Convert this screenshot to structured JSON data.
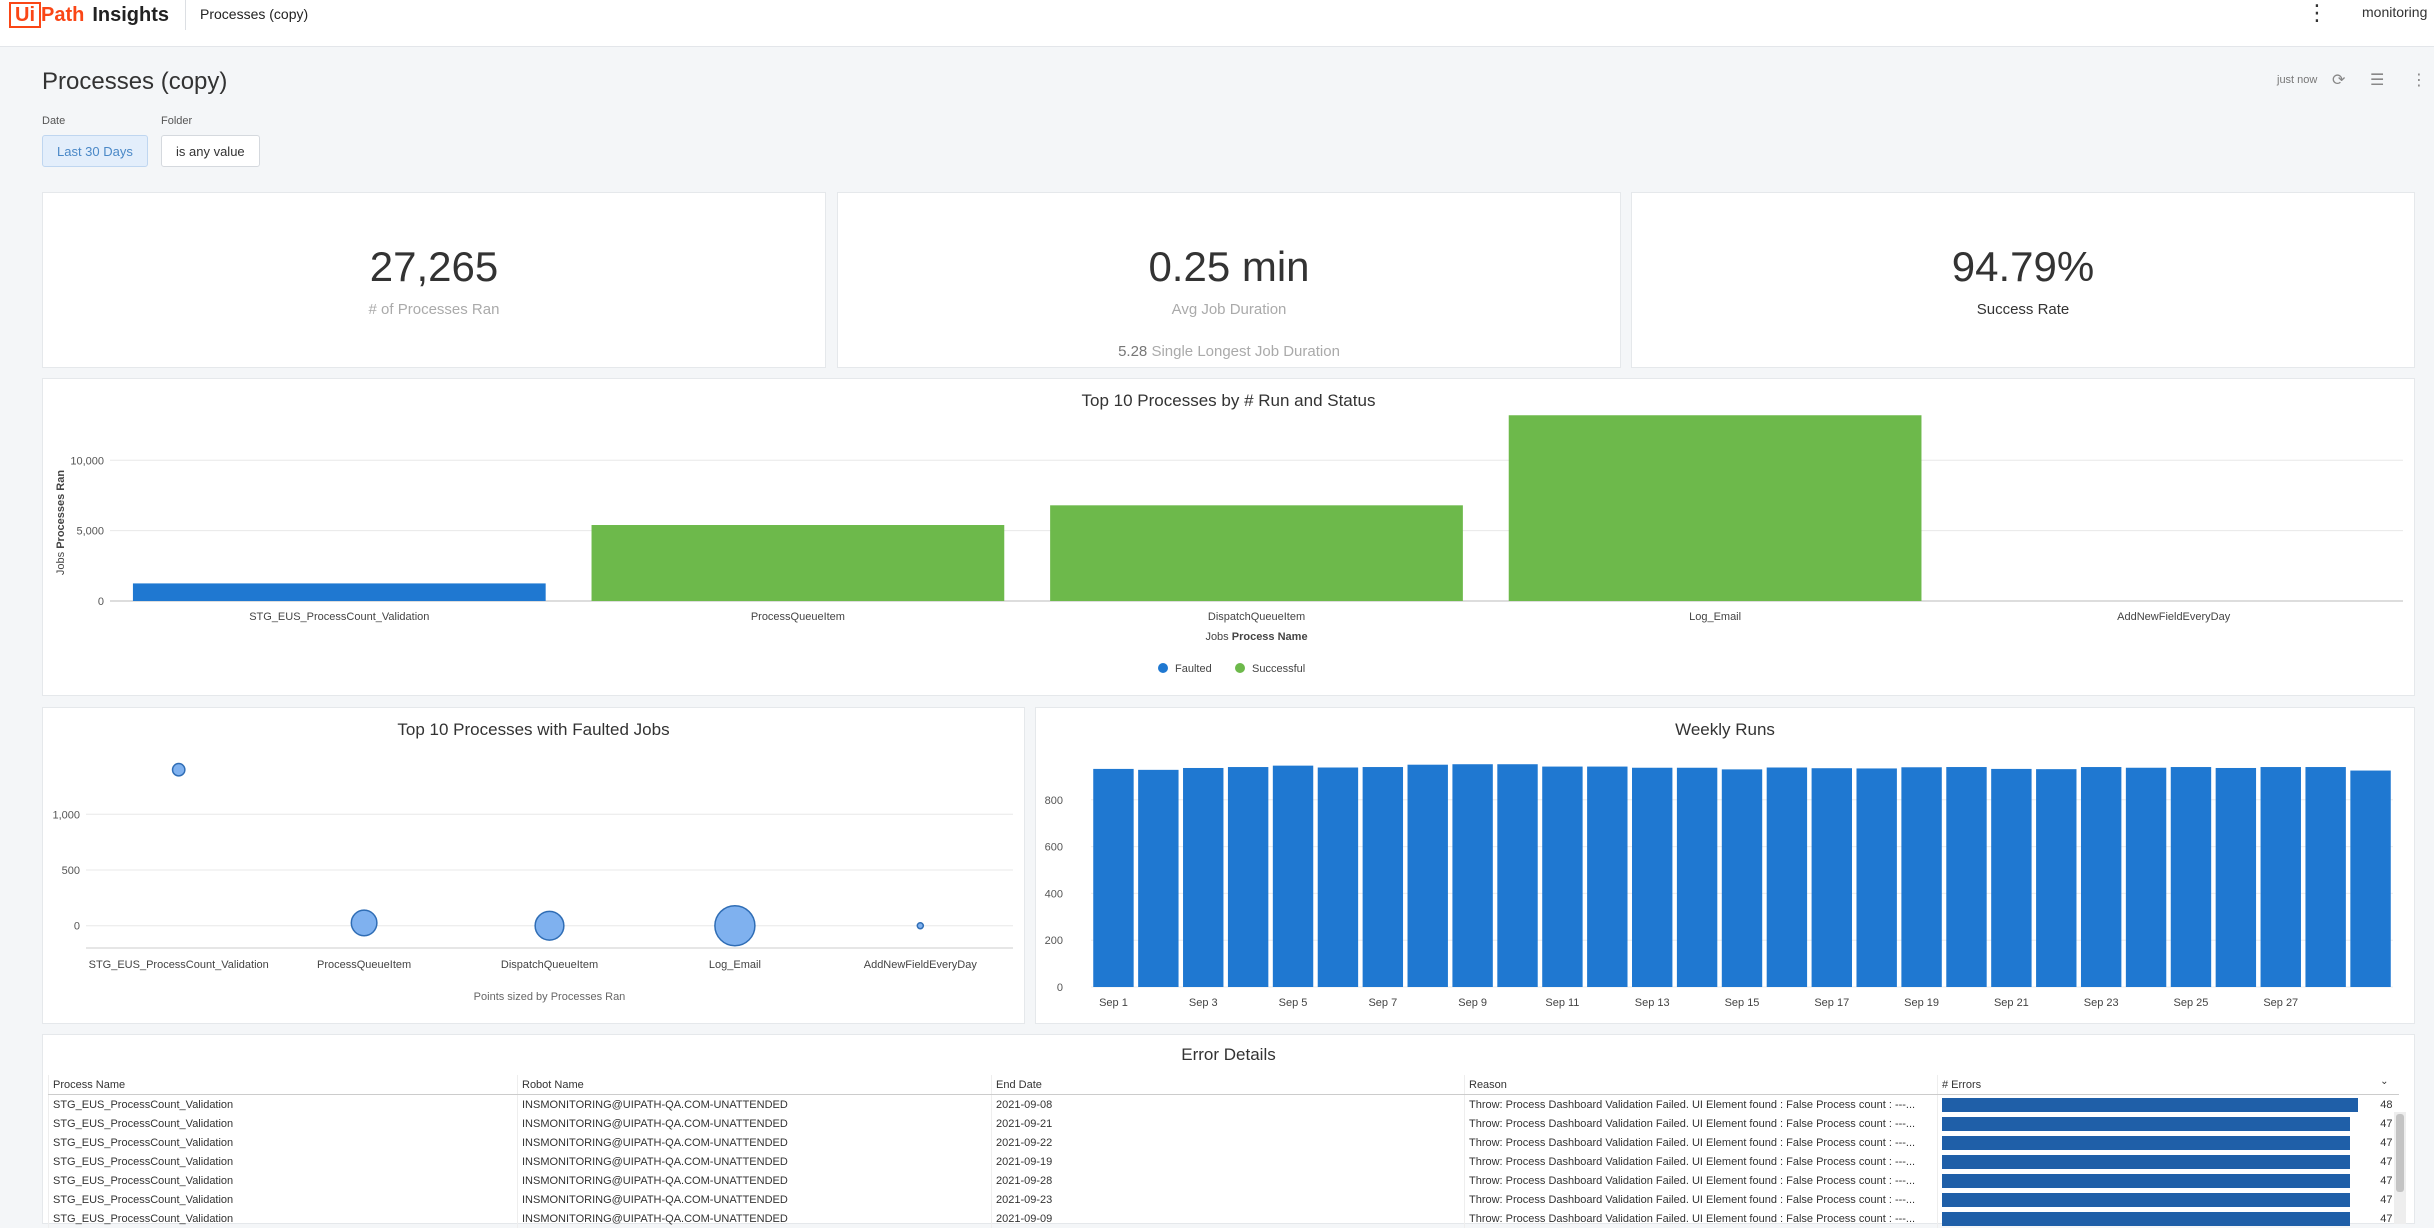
{
  "app": {
    "logo_mark": "Ui",
    "logo_path": "Path",
    "product": "Insights",
    "breadcrumb": "Processes (copy)",
    "user": "monitoring",
    "menu_icon": "kebab-icon"
  },
  "page": {
    "title": "Processes (copy)",
    "refresh_text": "just now",
    "icons": [
      "refresh-icon",
      "filter-icon",
      "kebab-icon"
    ]
  },
  "filters": [
    {
      "label": "Date",
      "value": "Last 30 Days"
    },
    {
      "label": "Folder",
      "value": "is any value"
    }
  ],
  "kpis": [
    {
      "value": "27,265",
      "label": "# of Processes Ran"
    },
    {
      "value": "0.25 min",
      "label": "Avg Job Duration",
      "extra_value": "5.28",
      "extra_label": "Single Longest Job Duration"
    },
    {
      "value": "94.79%",
      "label": "Success Rate"
    }
  ],
  "colors": {
    "faulted": "#1f78d1",
    "successful": "#6db94b",
    "bubble": "#7fb1ef"
  },
  "chart_data": [
    {
      "type": "bar",
      "title": "Top 10 Processes by # Run and Status",
      "ylabel_prefix": "Jobs",
      "ylabel": "Processes Ran",
      "xlabel_prefix": "Jobs",
      "xlabel": "Process Name",
      "categories": [
        "STG_EUS_ProcessCount_Validation",
        "ProcessQueueItem",
        "DispatchQueueItem",
        "Log_Email",
        "AddNewFieldEveryDay"
      ],
      "series": [
        {
          "name": "Faulted",
          "values": [
            1250,
            0,
            0,
            0,
            0
          ]
        },
        {
          "name": "Successful",
          "values": [
            0,
            5400,
            6800,
            13200,
            0
          ]
        }
      ],
      "yticks": [
        "0",
        "5,000",
        "10,000"
      ],
      "ylim": [
        0,
        14000
      ],
      "legend_position": "bottom"
    },
    {
      "type": "scatter",
      "title": "Top 10 Processes with Faulted Jobs",
      "categories": [
        "STG_EUS_ProcessCount_Validation",
        "ProcessQueueItem",
        "DispatchQueueItem",
        "Log_Email",
        "AddNewFieldEveryDay"
      ],
      "y": [
        1400,
        25,
        0,
        0,
        0
      ],
      "size": [
        1250,
        5400,
        6800,
        13200,
        120
      ],
      "yticks": [
        "0",
        "500",
        "1,000"
      ],
      "ylim": [
        -200,
        1550
      ],
      "note": "Points sized by Processes Ran"
    },
    {
      "type": "bar",
      "title": "Weekly Runs",
      "categories": [
        "Sep 1",
        "Sep 2",
        "Sep 3",
        "Sep 4",
        "Sep 5",
        "Sep 6",
        "Sep 7",
        "Sep 8",
        "Sep 9",
        "Sep 10",
        "Sep 11",
        "Sep 12",
        "Sep 13",
        "Sep 14",
        "Sep 15",
        "Sep 16",
        "Sep 17",
        "Sep 18",
        "Sep 19",
        "Sep 20",
        "Sep 21",
        "Sep 22",
        "Sep 23",
        "Sep 24",
        "Sep 25",
        "Sep 26",
        "Sep 27",
        "Sep 28",
        "Sep 29"
      ],
      "values": [
        932,
        928,
        936,
        940,
        946,
        938,
        940,
        950,
        952,
        952,
        942,
        942,
        937,
        937,
        930,
        938,
        935,
        934,
        939,
        940,
        932,
        931,
        940,
        937,
        940,
        936,
        940,
        940,
        925
      ],
      "tick_labels": [
        "Sep 1",
        "Sep 3",
        "Sep 5",
        "Sep 7",
        "Sep 9",
        "Sep 11",
        "Sep 13",
        "Sep 15",
        "Sep 17",
        "Sep 19",
        "Sep 21",
        "Sep 23",
        "Sep 25",
        "Sep 27"
      ],
      "yticks": [
        "0",
        "200",
        "400",
        "600",
        "800"
      ],
      "ylim": [
        0,
        1000
      ]
    }
  ],
  "errors": {
    "title": "Error Details",
    "columns": [
      "Process Name",
      "Robot Name",
      "End Date",
      "Reason",
      "# Errors"
    ],
    "sort_icon": "chevron-down-icon",
    "max": 48,
    "rows": [
      {
        "process": "STG_EUS_ProcessCount_Validation",
        "robot": "INSMONITORING@UIPATH-QA.COM-UNATTENDED",
        "date": "2021-09-08",
        "reason": "Throw: Process Dashboard Validation Failed. UI Element found : False Process count : ---...",
        "errors": 48
      },
      {
        "process": "STG_EUS_ProcessCount_Validation",
        "robot": "INSMONITORING@UIPATH-QA.COM-UNATTENDED",
        "date": "2021-09-21",
        "reason": "Throw: Process Dashboard Validation Failed. UI Element found : False Process count : ---...",
        "errors": 47
      },
      {
        "process": "STG_EUS_ProcessCount_Validation",
        "robot": "INSMONITORING@UIPATH-QA.COM-UNATTENDED",
        "date": "2021-09-22",
        "reason": "Throw: Process Dashboard Validation Failed. UI Element found : False Process count : ---...",
        "errors": 47
      },
      {
        "process": "STG_EUS_ProcessCount_Validation",
        "robot": "INSMONITORING@UIPATH-QA.COM-UNATTENDED",
        "date": "2021-09-19",
        "reason": "Throw: Process Dashboard Validation Failed. UI Element found : False Process count : ---...",
        "errors": 47
      },
      {
        "process": "STG_EUS_ProcessCount_Validation",
        "robot": "INSMONITORING@UIPATH-QA.COM-UNATTENDED",
        "date": "2021-09-28",
        "reason": "Throw: Process Dashboard Validation Failed. UI Element found : False Process count : ---...",
        "errors": 47
      },
      {
        "process": "STG_EUS_ProcessCount_Validation",
        "robot": "INSMONITORING@UIPATH-QA.COM-UNATTENDED",
        "date": "2021-09-23",
        "reason": "Throw: Process Dashboard Validation Failed. UI Element found : False Process count : ---...",
        "errors": 47
      },
      {
        "process": "STG_EUS_ProcessCount_Validation",
        "robot": "INSMONITORING@UIPATH-QA.COM-UNATTENDED",
        "date": "2021-09-09",
        "reason": "Throw: Process Dashboard Validation Failed. UI Element found : False Process count : ---...",
        "errors": 47
      }
    ]
  }
}
